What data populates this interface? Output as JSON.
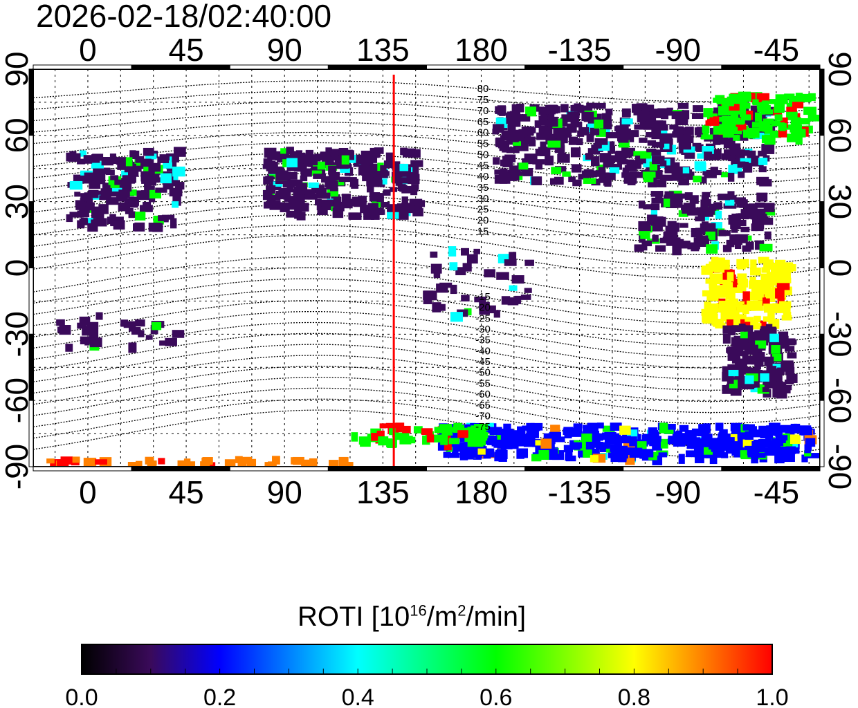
{
  "title": "2026-02-18/02:40:00",
  "colorbar": {
    "label_main": "ROTI  [10",
    "label_sup1": "16",
    "label_mid": "/m",
    "label_sup2": "2",
    "label_end": "/min]",
    "ticks": [
      "0.0",
      "0.2",
      "0.4",
      "0.6",
      "0.8",
      "1.0"
    ],
    "range": [
      0.0,
      1.0
    ]
  },
  "map": {
    "lon_range": [
      -25,
      335
    ],
    "lat_range": [
      -90,
      90
    ],
    "lon_ticks": [
      "0",
      "45",
      "90",
      "135",
      "180",
      "-135",
      "-90",
      "-45"
    ],
    "lon_tick_values": [
      0,
      45,
      90,
      135,
      180,
      225,
      270,
      315
    ],
    "lat_ticks": [
      "90",
      "60",
      "30",
      "0",
      "-30",
      "-60",
      "-90"
    ],
    "lat_tick_values": [
      90,
      60,
      30,
      0,
      -30,
      -60,
      -90
    ],
    "marker_longitude": 140,
    "marker_color": "#ff0000",
    "mag_lat_labels_north": [
      "80",
      "75",
      "70",
      "65",
      "60",
      "55",
      "50",
      "45",
      "40",
      "35",
      "30",
      "25",
      "20",
      "15"
    ],
    "mag_lat_labels_south": [
      "-15",
      "-20",
      "-25",
      "-30",
      "-35",
      "-40",
      "-45",
      "-50",
      "-55",
      "-60",
      "-65",
      "-70",
      "-75"
    ]
  }
}
